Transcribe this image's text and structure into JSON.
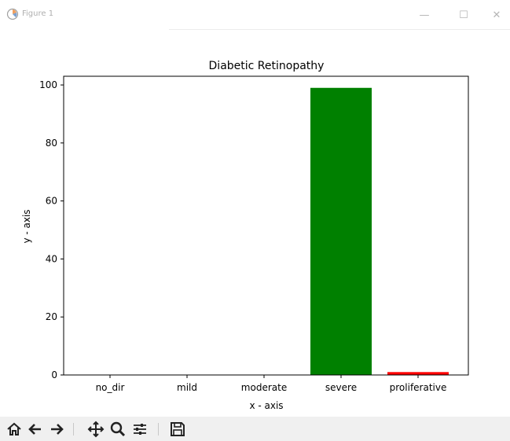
{
  "window": {
    "title": "Figure 1",
    "buttons": {
      "minimize": "—",
      "maximize": "☐",
      "close": "✕"
    }
  },
  "icons": {
    "app": "matplotlib-logo-icon",
    "toolbar": [
      "home-icon",
      "back-arrow-icon",
      "forward-arrow-icon",
      "pan-move-icon",
      "zoom-magnifier-icon",
      "configure-subplots-icon",
      "save-floppy-icon"
    ]
  },
  "chart_data": {
    "type": "bar",
    "title": "Diabetic Retinopathy",
    "xlabel": "x - axis",
    "ylabel": "y - axis",
    "categories": [
      "no_dir",
      "mild",
      "moderate",
      "severe",
      "proliferative"
    ],
    "values": [
      0,
      0,
      0,
      99,
      1
    ],
    "colors": [
      "#0000ff",
      "#ffa500",
      "#ffff00",
      "#008000",
      "#ff0000"
    ],
    "ylim": [
      0,
      103
    ],
    "yticks": [
      "0",
      "20",
      "40",
      "60",
      "80",
      "100"
    ],
    "grid": false,
    "legend": "none"
  }
}
